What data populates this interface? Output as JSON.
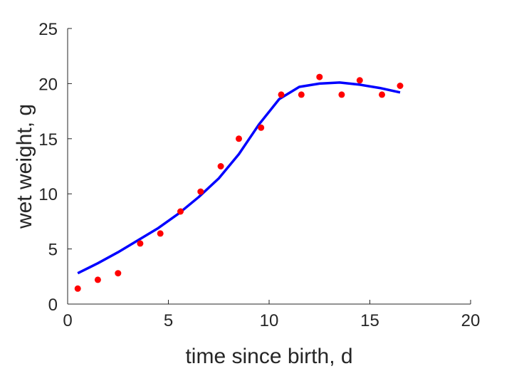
{
  "chart_data": {
    "type": "scatter",
    "title": "",
    "xlabel": "time since birth, d",
    "ylabel": "wet weight, g",
    "xlim": [
      0,
      20
    ],
    "ylim": [
      0,
      25
    ],
    "xticks": [
      0,
      5,
      10,
      15,
      20
    ],
    "yticks": [
      0,
      5,
      10,
      15,
      20,
      25
    ],
    "grid": false,
    "series": [
      {
        "type": "scatter",
        "color": "#ff0000",
        "x": [
          0.5,
          1.5,
          2.5,
          3.6,
          4.6,
          5.6,
          6.6,
          7.6,
          8.5,
          9.6,
          10.6,
          11.6,
          12.5,
          13.6,
          14.5,
          15.6,
          16.5
        ],
        "y": [
          1.4,
          2.2,
          2.8,
          5.5,
          6.4,
          8.4,
          10.2,
          12.5,
          15.0,
          16.0,
          19.0,
          19.0,
          20.6,
          19.0,
          20.3,
          19.0,
          19.8
        ]
      },
      {
        "type": "line",
        "color": "#0000ff",
        "x": [
          0.5,
          1.5,
          2.5,
          3.5,
          4.5,
          5.5,
          6.5,
          7.5,
          8.5,
          9.5,
          10.5,
          11.5,
          12.5,
          13.5,
          14.5,
          15.5,
          16.5
        ],
        "y": [
          2.8,
          3.7,
          4.7,
          5.8,
          6.9,
          8.2,
          9.7,
          11.4,
          13.6,
          16.3,
          18.6,
          19.7,
          20.0,
          20.1,
          19.9,
          19.6,
          19.2
        ]
      }
    ]
  }
}
